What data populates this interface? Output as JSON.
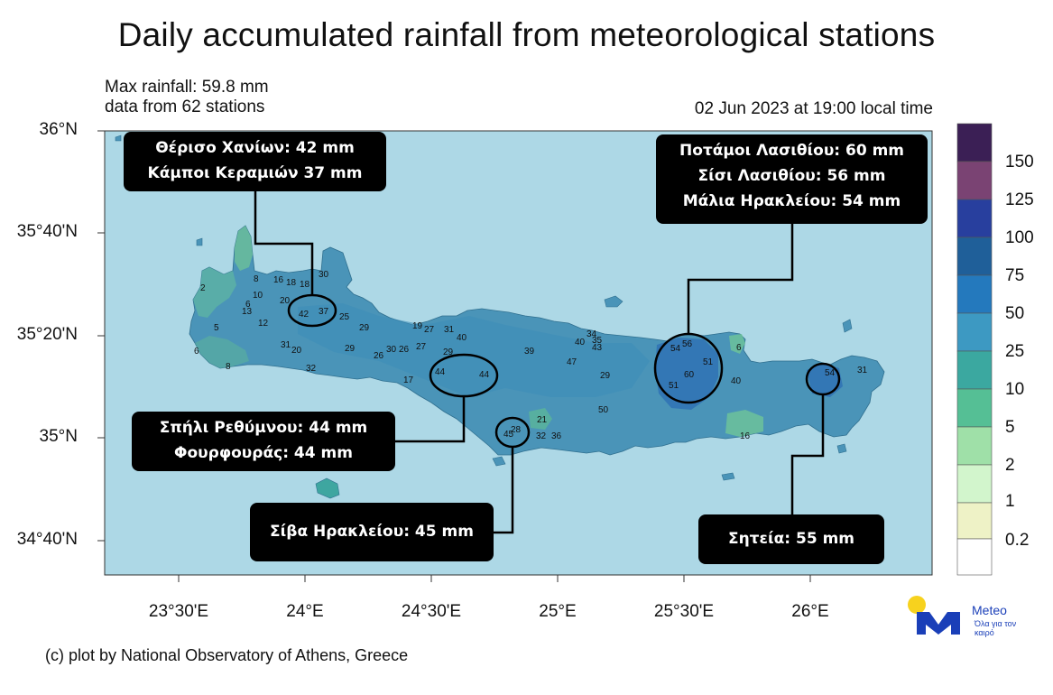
{
  "title": "Daily accumulated rainfall from meteorological stations",
  "meta": {
    "max_rainfall": "Max rainfall: 59.8 mm",
    "stations": "data from 62 stations",
    "datetime": "02 Jun 2023 at 19:00 local time"
  },
  "credit": "(c) plot by National Observatory of Athens, Greece",
  "axes": {
    "lat_labels": [
      "36°N",
      "35°40'N",
      "35°20'N",
      "35°N",
      "34°40'N"
    ],
    "lon_labels": [
      "23°30'E",
      "24°E",
      "24°30'E",
      "25°E",
      "25°30'E",
      "26°E"
    ]
  },
  "colorbar": {
    "labels": [
      "150",
      "125",
      "100",
      "75",
      "50",
      "25",
      "10",
      "5",
      "2",
      "1",
      "0.2"
    ],
    "colors": [
      "#3b1f55",
      "#7a4373",
      "#283f9e",
      "#1f5f99",
      "#2479bd",
      "#3d99c2",
      "#3ba8a0",
      "#55bf95",
      "#9fe0a8",
      "#d2f5cc",
      "#eef2c6",
      "#ffffff"
    ]
  },
  "callouts": {
    "chania": [
      "Θέρισο Χανίων: 42 mm",
      "Κάμποι Κεραμιών 37 mm"
    ],
    "lasithi": [
      "Ποτάμοι Λασιθίου: 60 mm",
      "Σίσι Λασιθίου: 56 mm",
      "Μάλια Ηρακλείου: 54 mm"
    ],
    "rethymno": [
      "Σπήλι Ρεθύμνου: 44 mm",
      "Φουρφουράς: 44 mm"
    ],
    "heraklion": [
      "Σίβα Ηρακλείου: 45 mm"
    ],
    "siteia": [
      "Σητεία: 55 mm"
    ]
  },
  "stations": [
    {
      "value": "2"
    },
    {
      "value": "5"
    },
    {
      "value": "6"
    },
    {
      "value": "8"
    },
    {
      "value": "13"
    },
    {
      "value": "10"
    },
    {
      "value": "6"
    },
    {
      "value": "12"
    },
    {
      "value": "8"
    },
    {
      "value": "16"
    },
    {
      "value": "18"
    },
    {
      "value": "18"
    },
    {
      "value": "30"
    },
    {
      "value": "20"
    },
    {
      "value": "42"
    },
    {
      "value": "37"
    },
    {
      "value": "25"
    },
    {
      "value": "31"
    },
    {
      "value": "20"
    },
    {
      "value": "32"
    },
    {
      "value": "29"
    },
    {
      "value": "29"
    },
    {
      "value": "26"
    },
    {
      "value": "30"
    },
    {
      "value": "26"
    },
    {
      "value": "27"
    },
    {
      "value": "19"
    },
    {
      "value": "27"
    },
    {
      "value": "31"
    },
    {
      "value": "40"
    },
    {
      "value": "29"
    },
    {
      "value": "17"
    },
    {
      "value": "44"
    },
    {
      "value": "44"
    },
    {
      "value": "39"
    },
    {
      "value": "47"
    },
    {
      "value": "40"
    },
    {
      "value": "34"
    },
    {
      "value": "35"
    },
    {
      "value": "43"
    },
    {
      "value": "29"
    },
    {
      "value": "50"
    },
    {
      "value": "21"
    },
    {
      "value": "28"
    },
    {
      "value": "45"
    },
    {
      "value": "32"
    },
    {
      "value": "36"
    },
    {
      "value": "54"
    },
    {
      "value": "56"
    },
    {
      "value": "51"
    },
    {
      "value": "60"
    },
    {
      "value": "51"
    },
    {
      "value": "40"
    },
    {
      "value": "6"
    },
    {
      "value": "54"
    },
    {
      "value": "31"
    },
    {
      "value": "16"
    }
  ],
  "logo": {
    "name": "Meteo",
    "tagline": "Όλα για τον καιρό",
    "colors": {
      "sun": "#f7d21e",
      "mark": "#1a3fb8"
    }
  }
}
